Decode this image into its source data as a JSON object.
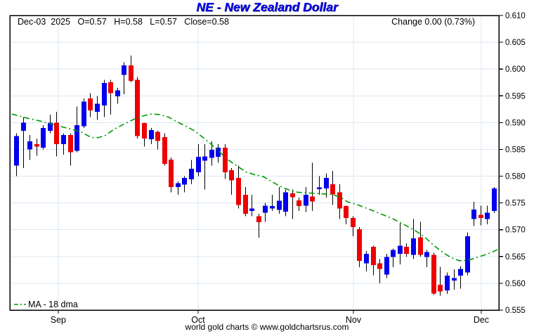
{
  "title": "NE - New Zealand Dollar",
  "header": {
    "info": "Dec-03  2025   O=0.57   H=0.58   L=0.57   Close=0.58",
    "change": "Change 0.00 (0.73%)"
  },
  "legend": {
    "ma_label": "MA - 18 dma"
  },
  "footer": "world gold charts © www.goldchartsrus.com",
  "colors": {
    "up": "#0000ee",
    "down": "#ee0000",
    "wick": "#000000",
    "ma": "#009900",
    "grid": "#dbe7f3",
    "border": "#000000",
    "title": "#0d0de6"
  },
  "chart_data": {
    "type": "candlestick",
    "title": "NE - New Zealand Dollar",
    "ylabel": "",
    "xlabel": "",
    "ylim": [
      0.555,
      0.61
    ],
    "y_ticks": [
      0.61,
      0.605,
      0.6,
      0.595,
      0.59,
      0.585,
      0.58,
      0.575,
      0.57,
      0.565,
      0.56,
      0.555
    ],
    "x_ticks": [
      {
        "label": "Sep",
        "pos": 0.099
      },
      {
        "label": "Oct",
        "pos": 0.385
      },
      {
        "label": "Nov",
        "pos": 0.7025
      },
      {
        "label": "Dec",
        "pos": 0.964
      }
    ],
    "last_bar": {
      "date": "Dec-03 2025",
      "open": 0.57,
      "high": 0.58,
      "low": 0.57,
      "close": 0.58,
      "change": "0.00 (0.73%)"
    },
    "candles": [
      [
        0.582,
        0.588,
        0.58,
        0.5875
      ],
      [
        0.5885,
        0.591,
        0.5815,
        0.59
      ],
      [
        0.585,
        0.5877,
        0.583,
        0.5865
      ],
      [
        0.586,
        0.587,
        0.5838,
        0.5855
      ],
      [
        0.5853,
        0.5895,
        0.585,
        0.589
      ],
      [
        0.5885,
        0.5915,
        0.588,
        0.59
      ],
      [
        0.59,
        0.592,
        0.5837,
        0.586
      ],
      [
        0.586,
        0.588,
        0.584,
        0.5877
      ],
      [
        0.5877,
        0.588,
        0.582,
        0.5845
      ],
      [
        0.5847,
        0.593,
        0.5845,
        0.5895
      ],
      [
        0.5893,
        0.5945,
        0.589,
        0.5939
      ],
      [
        0.5945,
        0.5955,
        0.591,
        0.5923
      ],
      [
        0.592,
        0.595,
        0.5905,
        0.5935
      ],
      [
        0.5932,
        0.598,
        0.591,
        0.5974
      ],
      [
        0.5975,
        0.598,
        0.5915,
        0.5955
      ],
      [
        0.5949,
        0.5965,
        0.5935,
        0.596
      ],
      [
        0.5989,
        0.6013,
        0.5953,
        0.6007
      ],
      [
        0.6007,
        0.6025,
        0.5975,
        0.5978
      ],
      [
        0.598,
        0.5985,
        0.587,
        0.5875
      ],
      [
        0.5899,
        0.59,
        0.5855,
        0.587
      ],
      [
        0.5869,
        0.589,
        0.586,
        0.5886
      ],
      [
        0.5883,
        0.5885,
        0.585,
        0.5866
      ],
      [
        0.5873,
        0.588,
        0.582,
        0.5823
      ],
      [
        0.5831,
        0.5835,
        0.577,
        0.578
      ],
      [
        0.578,
        0.579,
        0.5765,
        0.5787
      ],
      [
        0.5784,
        0.58,
        0.577,
        0.5797
      ],
      [
        0.5794,
        0.583,
        0.5785,
        0.5814
      ],
      [
        0.5807,
        0.586,
        0.58,
        0.5836
      ],
      [
        0.5829,
        0.586,
        0.5775,
        0.5837
      ],
      [
        0.5834,
        0.5865,
        0.582,
        0.5849
      ],
      [
        0.5836,
        0.586,
        0.5825,
        0.5853
      ],
      [
        0.5853,
        0.586,
        0.5795,
        0.5807
      ],
      [
        0.5811,
        0.5815,
        0.5765,
        0.5792
      ],
      [
        0.5797,
        0.582,
        0.574,
        0.5746
      ],
      [
        0.5765,
        0.578,
        0.5725,
        0.573
      ],
      [
        0.5735,
        0.5765,
        0.5725,
        0.574
      ],
      [
        0.5725,
        0.573,
        0.5685,
        0.5714
      ],
      [
        0.5732,
        0.575,
        0.5715,
        0.5745
      ],
      [
        0.574,
        0.5765,
        0.5735,
        0.5744
      ],
      [
        0.5737,
        0.578,
        0.573,
        0.5754
      ],
      [
        0.5734,
        0.5775,
        0.5725,
        0.577
      ],
      [
        0.5768,
        0.5775,
        0.572,
        0.5761
      ],
      [
        0.5755,
        0.576,
        0.5735,
        0.5744
      ],
      [
        0.5745,
        0.578,
        0.5733,
        0.5765
      ],
      [
        0.5762,
        0.5825,
        0.5735,
        0.5753
      ],
      [
        0.5776,
        0.58,
        0.5765,
        0.5779
      ],
      [
        0.5777,
        0.5805,
        0.576,
        0.5797
      ],
      [
        0.5785,
        0.581,
        0.5746,
        0.5766
      ],
      [
        0.577,
        0.5785,
        0.572,
        0.574
      ],
      [
        0.5744,
        0.5745,
        0.571,
        0.5722
      ],
      [
        0.5722,
        0.5725,
        0.5688,
        0.5705
      ],
      [
        0.5701,
        0.5705,
        0.563,
        0.5642
      ],
      [
        0.5637,
        0.566,
        0.5622,
        0.5655
      ],
      [
        0.5668,
        0.567,
        0.5615,
        0.5634
      ],
      [
        0.5637,
        0.5645,
        0.56,
        0.5627
      ],
      [
        0.5616,
        0.5655,
        0.561,
        0.5649
      ],
      [
        0.5649,
        0.5665,
        0.563,
        0.5662
      ],
      [
        0.5655,
        0.5712,
        0.5635,
        0.567
      ],
      [
        0.5668,
        0.5675,
        0.565,
        0.5655
      ],
      [
        0.5653,
        0.572,
        0.5645,
        0.5684
      ],
      [
        0.5686,
        0.5715,
        0.565,
        0.5653
      ],
      [
        0.5649,
        0.5662,
        0.563,
        0.5658
      ],
      [
        0.5653,
        0.5657,
        0.5578,
        0.5581
      ],
      [
        0.5597,
        0.5631,
        0.5577,
        0.5585
      ],
      [
        0.5587,
        0.562,
        0.558,
        0.5614
      ],
      [
        0.5605,
        0.5626,
        0.5588,
        0.561
      ],
      [
        0.5614,
        0.5632,
        0.559,
        0.5627
      ],
      [
        0.562,
        0.5695,
        0.5615,
        0.5688
      ],
      [
        0.572,
        0.5752,
        0.5707,
        0.5738
      ],
      [
        0.5728,
        0.5745,
        0.5708,
        0.5722
      ],
      [
        0.572,
        0.5745,
        0.571,
        0.5732
      ],
      [
        0.5735,
        0.578,
        0.5731,
        0.5777
      ]
    ],
    "ma_series": {
      "name": "MA - 18 dma",
      "points": [
        [
          0.004,
          0.5916
        ],
        [
          0.037,
          0.5908
        ],
        [
          0.066,
          0.5902
        ],
        [
          0.095,
          0.5895
        ],
        [
          0.124,
          0.5888
        ],
        [
          0.145,
          0.5883
        ],
        [
          0.167,
          0.5872
        ],
        [
          0.181,
          0.5872
        ],
        [
          0.195,
          0.5876
        ],
        [
          0.214,
          0.5888
        ],
        [
          0.231,
          0.5896
        ],
        [
          0.253,
          0.5906
        ],
        [
          0.274,
          0.5913
        ],
        [
          0.289,
          0.5916
        ],
        [
          0.307,
          0.5915
        ],
        [
          0.325,
          0.591
        ],
        [
          0.339,
          0.5903
        ],
        [
          0.356,
          0.5895
        ],
        [
          0.375,
          0.5886
        ],
        [
          0.394,
          0.5873
        ],
        [
          0.411,
          0.586
        ],
        [
          0.428,
          0.5846
        ],
        [
          0.447,
          0.583
        ],
        [
          0.466,
          0.5818
        ],
        [
          0.483,
          0.5808
        ],
        [
          0.5,
          0.5803
        ],
        [
          0.519,
          0.5799
        ],
        [
          0.537,
          0.5789
        ],
        [
          0.555,
          0.578
        ],
        [
          0.572,
          0.5774
        ],
        [
          0.589,
          0.577
        ],
        [
          0.606,
          0.5769
        ],
        [
          0.624,
          0.5768
        ],
        [
          0.641,
          0.5767
        ],
        [
          0.658,
          0.5766
        ],
        [
          0.675,
          0.5761
        ],
        [
          0.691,
          0.5752
        ],
        [
          0.71,
          0.5747
        ],
        [
          0.727,
          0.5741
        ],
        [
          0.744,
          0.5735
        ],
        [
          0.763,
          0.5728
        ],
        [
          0.782,
          0.5721
        ],
        [
          0.799,
          0.5713
        ],
        [
          0.816,
          0.5705
        ],
        [
          0.833,
          0.5696
        ],
        [
          0.85,
          0.5685
        ],
        [
          0.868,
          0.567
        ],
        [
          0.885,
          0.5658
        ],
        [
          0.902,
          0.5648
        ],
        [
          0.92,
          0.5642
        ],
        [
          0.937,
          0.5643
        ],
        [
          0.954,
          0.5648
        ],
        [
          0.971,
          0.5653
        ],
        [
          0.986,
          0.5658
        ],
        [
          0.997,
          0.5663
        ]
      ]
    },
    "legend_position": "bottom-left",
    "grid": true
  }
}
